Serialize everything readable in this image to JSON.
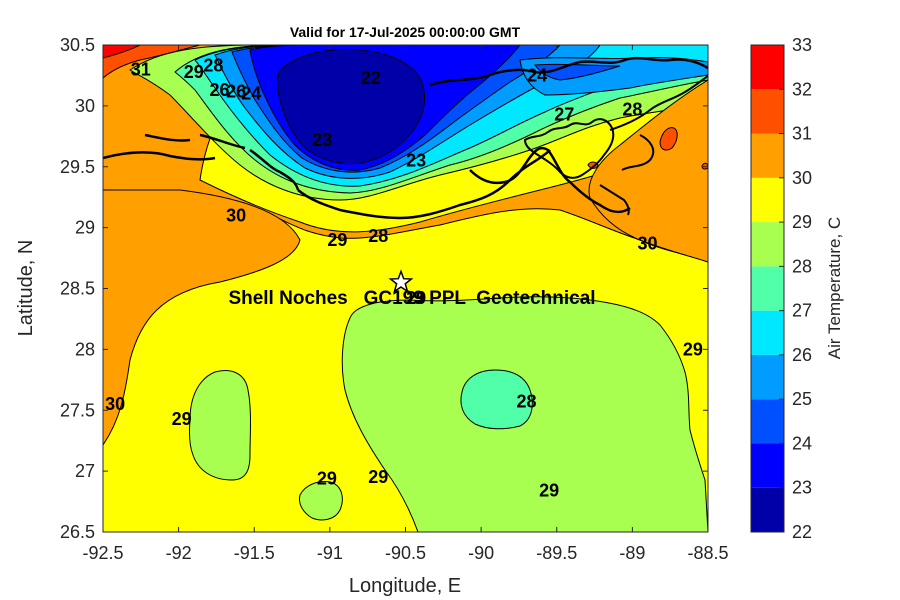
{
  "chart_data": {
    "type": "contour_map",
    "title": "Valid for 17-Jul-2025 00:00:00 GMT",
    "xlabel": "Longitude, E",
    "ylabel": "Latitude, N",
    "xlim": [
      -92.5,
      -88.5
    ],
    "ylim": [
      26.5,
      30.5
    ],
    "xticks": [
      -92.5,
      -92,
      -91.5,
      -91,
      -90.5,
      -90,
      -89.5,
      -89,
      -88.5
    ],
    "yticks": [
      26.5,
      27,
      27.5,
      28,
      28.5,
      29,
      29.5,
      30,
      30.5
    ],
    "xtick_labels": [
      "-92.5",
      "-92",
      "-91.5",
      "-91",
      "-90.5",
      "-90",
      "-89.5",
      "-89",
      "-88.5"
    ],
    "ytick_labels": [
      "26.5",
      "27",
      "27.5",
      "28",
      "28.5",
      "29",
      "29.5",
      "30",
      "30.5"
    ],
    "colorbar": {
      "label": "Air Temperature, C",
      "min": 22,
      "max": 33,
      "levels": [
        22,
        23,
        24,
        25,
        26,
        27,
        28,
        29,
        30,
        31,
        32,
        33
      ],
      "tick_labels": [
        "22",
        "23",
        "24",
        "25",
        "26",
        "27",
        "28",
        "29",
        "30",
        "31",
        "32",
        "33"
      ],
      "colors": [
        "#0000a8",
        "#0000ff",
        "#0050ff",
        "#009cff",
        "#00e8ff",
        "#50ffa8",
        "#a8ff50",
        "#ffff00",
        "#ffa000",
        "#ff5000",
        "#ff0000",
        "#a80000"
      ]
    },
    "station": {
      "lon": -90.53,
      "lat": 28.55,
      "marker": "star",
      "label": "Shell Noches   GC199 PPL  Geotechnical"
    },
    "contour_labels": [
      {
        "text": "31",
        "lon": -92.25,
        "lat": 30.3
      },
      {
        "text": "29",
        "lon": -91.9,
        "lat": 30.28
      },
      {
        "text": "28",
        "lon": -91.77,
        "lat": 30.33
      },
      {
        "text": "26",
        "lon": -91.73,
        "lat": 30.13
      },
      {
        "text": "26",
        "lon": -91.62,
        "lat": 30.12
      },
      {
        "text": "24",
        "lon": -91.52,
        "lat": 30.1
      },
      {
        "text": "22",
        "lon": -90.73,
        "lat": 30.23
      },
      {
        "text": "23",
        "lon": -91.05,
        "lat": 29.72
      },
      {
        "text": "23",
        "lon": -90.43,
        "lat": 29.55
      },
      {
        "text": "24",
        "lon": -89.63,
        "lat": 30.25
      },
      {
        "text": "27",
        "lon": -89.45,
        "lat": 29.93
      },
      {
        "text": "28",
        "lon": -89.0,
        "lat": 29.97
      },
      {
        "text": "30",
        "lon": -91.62,
        "lat": 29.1
      },
      {
        "text": "29",
        "lon": -90.95,
        "lat": 28.9
      },
      {
        "text": "28",
        "lon": -90.68,
        "lat": 28.93
      },
      {
        "text": "30",
        "lon": -88.9,
        "lat": 28.87
      },
      {
        "text": "29",
        "lon": -90.43,
        "lat": 28.42
      },
      {
        "text": "29",
        "lon": -88.6,
        "lat": 28.0
      },
      {
        "text": "28",
        "lon": -89.7,
        "lat": 27.57
      },
      {
        "text": "30",
        "lon": -92.42,
        "lat": 27.55
      },
      {
        "text": "29",
        "lon": -91.98,
        "lat": 27.43
      },
      {
        "text": "29",
        "lon": -91.02,
        "lat": 26.94
      },
      {
        "text": "29",
        "lon": -90.68,
        "lat": 26.95
      },
      {
        "text": "29",
        "lon": -89.55,
        "lat": 26.84
      }
    ]
  }
}
